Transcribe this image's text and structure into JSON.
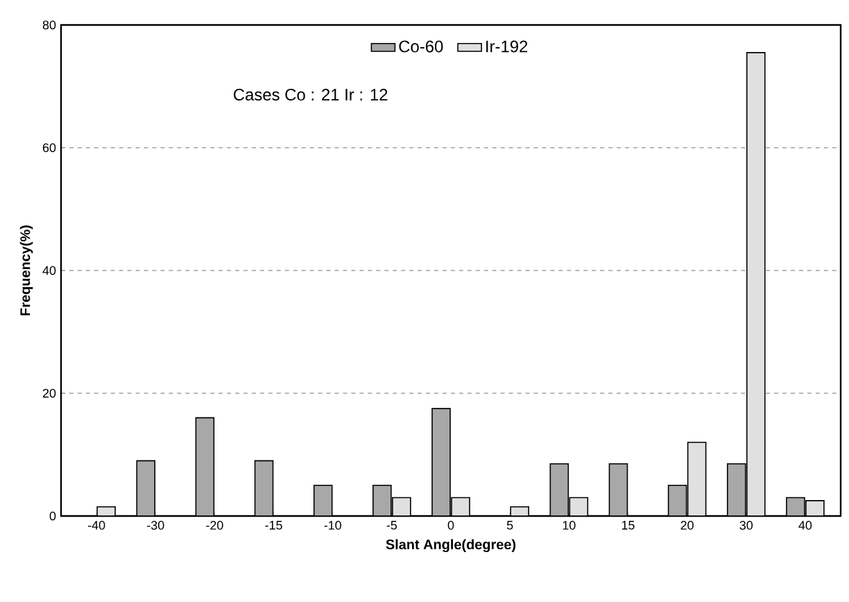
{
  "chart_data": {
    "type": "bar",
    "xlabel": "Slant Angle(degree)",
    "ylabel": "Frequency(%)",
    "categories": [
      "-40",
      "-30",
      "-20",
      "-15",
      "-10",
      "-5",
      "0",
      "5",
      "10",
      "15",
      "20",
      "30",
      "40"
    ],
    "series": [
      {
        "name": "Co-60",
        "color": "#a8a8a8",
        "values": [
          null,
          9,
          16,
          9,
          5,
          5,
          17.5,
          null,
          8.5,
          8.5,
          5,
          8.5,
          3
        ]
      },
      {
        "name": "Ir-192",
        "color": "#e0e0e0",
        "values": [
          1.5,
          null,
          null,
          null,
          null,
          3,
          3,
          1.5,
          3,
          null,
          12,
          75.5,
          2.5
        ]
      }
    ],
    "ylim": [
      0,
      80
    ],
    "yticks": [
      0,
      20,
      40,
      60,
      80
    ],
    "grid": "y",
    "legend": "top",
    "annotations": [
      "Cases Co : 21   Ir : 12"
    ]
  }
}
